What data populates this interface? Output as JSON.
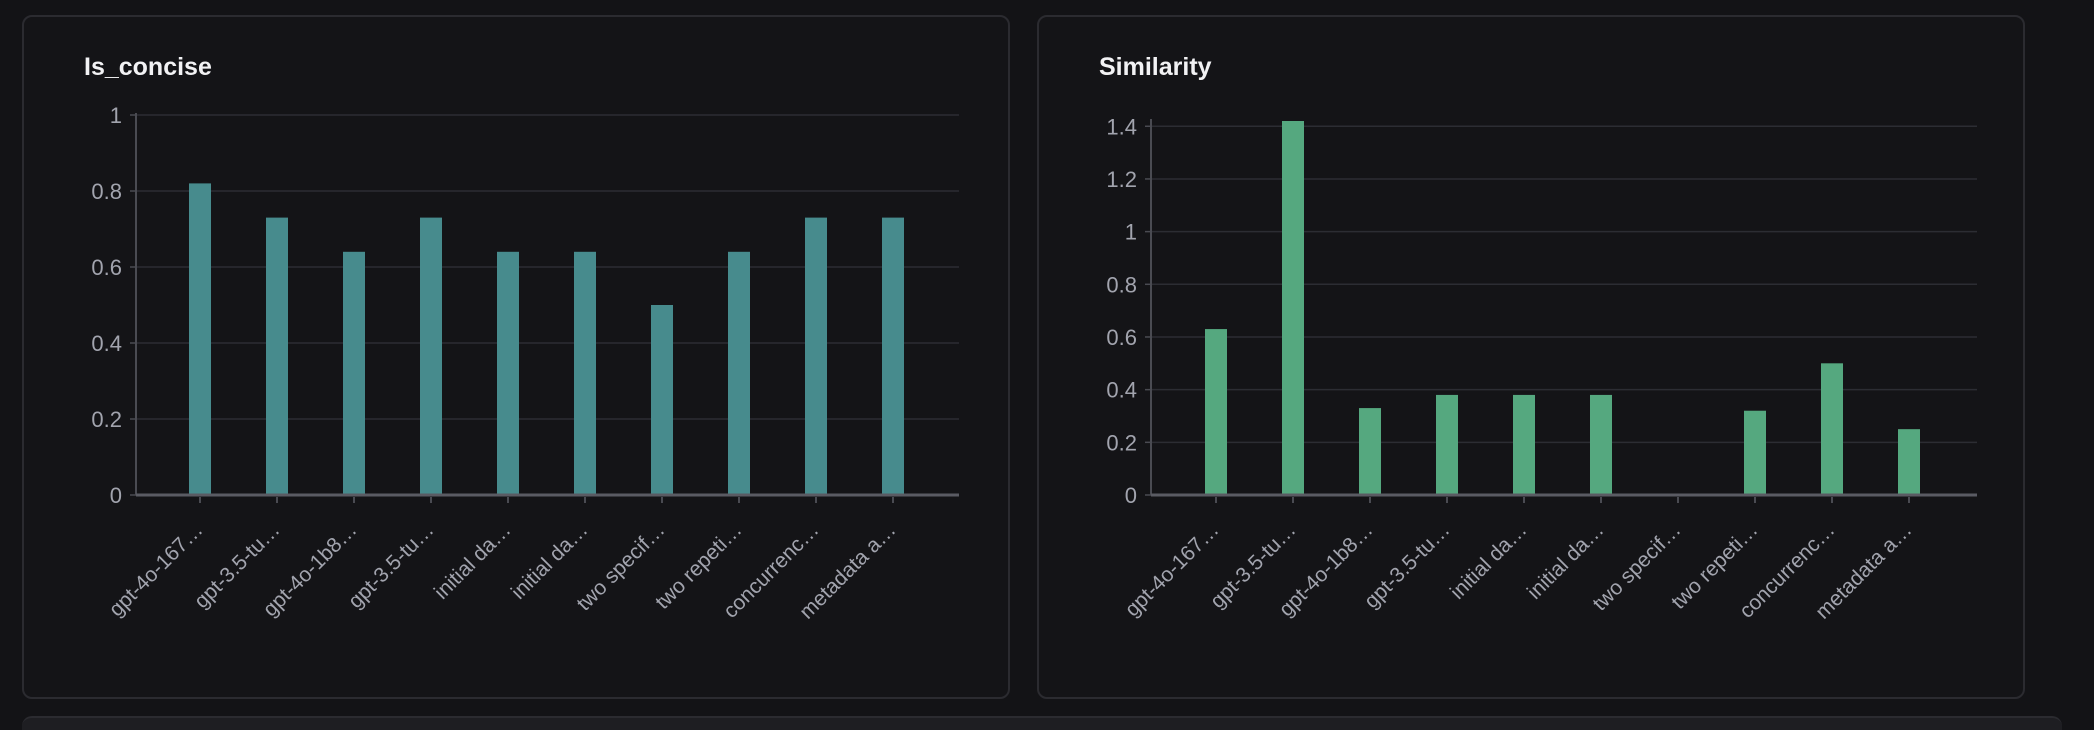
{
  "chart_data": [
    {
      "type": "bar",
      "title": "Is_concise",
      "color": "#478b8d",
      "categories": [
        "gpt-4o-167…",
        "gpt-3.5-tu…",
        "gpt-4o-1b8…",
        "gpt-3.5-tu…",
        "initial da…",
        "initial da…",
        "two specif…",
        "two repeti…",
        "concurrenc…",
        "metadata a…"
      ],
      "values": [
        0.82,
        0.73,
        0.64,
        0.73,
        0.64,
        0.64,
        0.5,
        0.64,
        0.73,
        0.73
      ],
      "yticks": [
        0,
        0.2,
        0.4,
        0.6,
        0.8,
        1
      ],
      "ytick_labels": [
        "0",
        "0.2",
        "0.4",
        "0.6",
        "0.8",
        "1"
      ],
      "ylim": [
        0,
        1
      ],
      "xlabel": "",
      "ylabel": "",
      "grid": true
    },
    {
      "type": "bar",
      "title": "Similarity",
      "color": "#55a87f",
      "categories": [
        "gpt-4o-167…",
        "gpt-3.5-tu…",
        "gpt-4o-1b8…",
        "gpt-3.5-tu…",
        "initial da…",
        "initial da…",
        "two specif…",
        "two repeti…",
        "concurrenc…",
        "metadata a…"
      ],
      "values": [
        0.63,
        1.42,
        0.33,
        0.38,
        0.38,
        0.38,
        0,
        0.32,
        0.5,
        0.25
      ],
      "yticks": [
        0,
        0.2,
        0.4,
        0.6,
        0.8,
        1,
        1.2,
        1.4
      ],
      "ytick_labels": [
        "0",
        "0.2",
        "0.4",
        "0.6",
        "0.8",
        "1",
        "1.2",
        "1.4"
      ],
      "ylim": [
        0,
        1.42
      ],
      "xlabel": "",
      "ylabel": "",
      "grid": true
    }
  ]
}
